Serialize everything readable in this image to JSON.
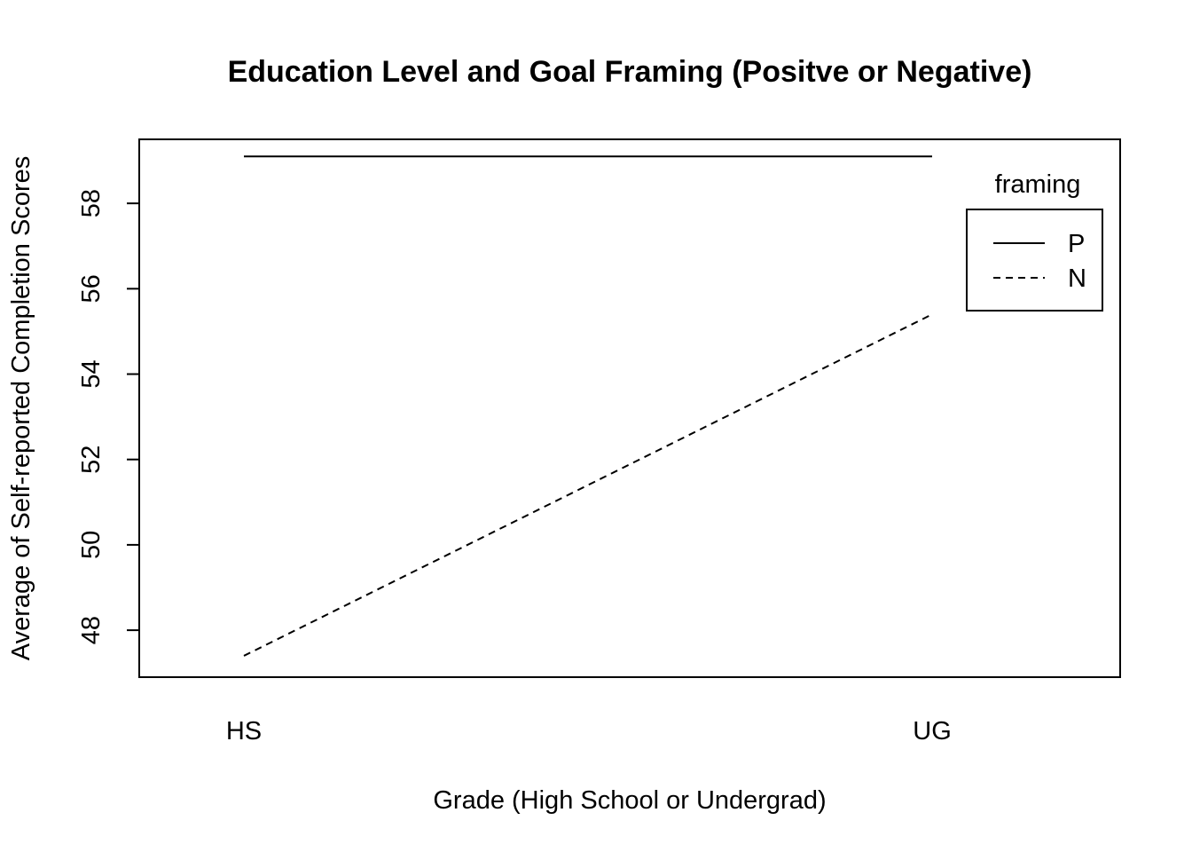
{
  "chart_data": {
    "type": "line",
    "title": "Education Level and Goal Framing (Positve or Negative)",
    "xlabel": "Grade (High School or Undergrad)",
    "ylabel": "Average of Self-reported Completion Scores",
    "categories": [
      "HS",
      "UG"
    ],
    "yticks": [
      48,
      50,
      52,
      54,
      56,
      58
    ],
    "ylim": [
      46.9,
      59.5
    ],
    "grid": false,
    "legend": {
      "title": "framing",
      "position": "top-right"
    },
    "series": [
      {
        "name": "P",
        "values": [
          59.1,
          59.1
        ],
        "style": "solid"
      },
      {
        "name": "N",
        "values": [
          47.4,
          55.4
        ],
        "style": "dashed"
      }
    ]
  }
}
